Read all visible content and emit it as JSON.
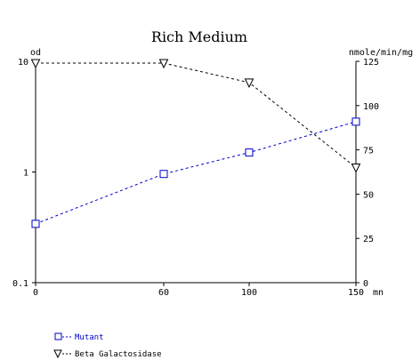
{
  "chart_data": {
    "type": "line",
    "title": "Rich Medium",
    "x_unit": "mn",
    "x": [
      0,
      60,
      100,
      150
    ],
    "x_ticks": [
      "0",
      "60",
      "100",
      "150"
    ],
    "xlim": [
      0,
      150
    ],
    "y_left": {
      "label": "od",
      "scale": "log",
      "ylim": [
        0.1,
        10
      ],
      "ticks": [
        "0.1",
        "1",
        "10"
      ]
    },
    "y_right": {
      "label": "nmole/min/mg",
      "scale": "linear",
      "ylim": [
        0,
        125
      ],
      "ticks": [
        "0",
        "25",
        "50",
        "75",
        "100",
        "125"
      ]
    },
    "series": [
      {
        "name": "Mutant",
        "axis": "left",
        "marker": "square",
        "color": "#0000cc",
        "values": [
          0.34,
          0.96,
          1.5,
          2.85
        ]
      },
      {
        "name": "Beta Galactosidase",
        "axis": "right",
        "marker": "triangle-down",
        "color": "#000000",
        "values": [
          124,
          124,
          113,
          65
        ]
      }
    ],
    "legend_position": "bottom-left",
    "grid": false
  }
}
